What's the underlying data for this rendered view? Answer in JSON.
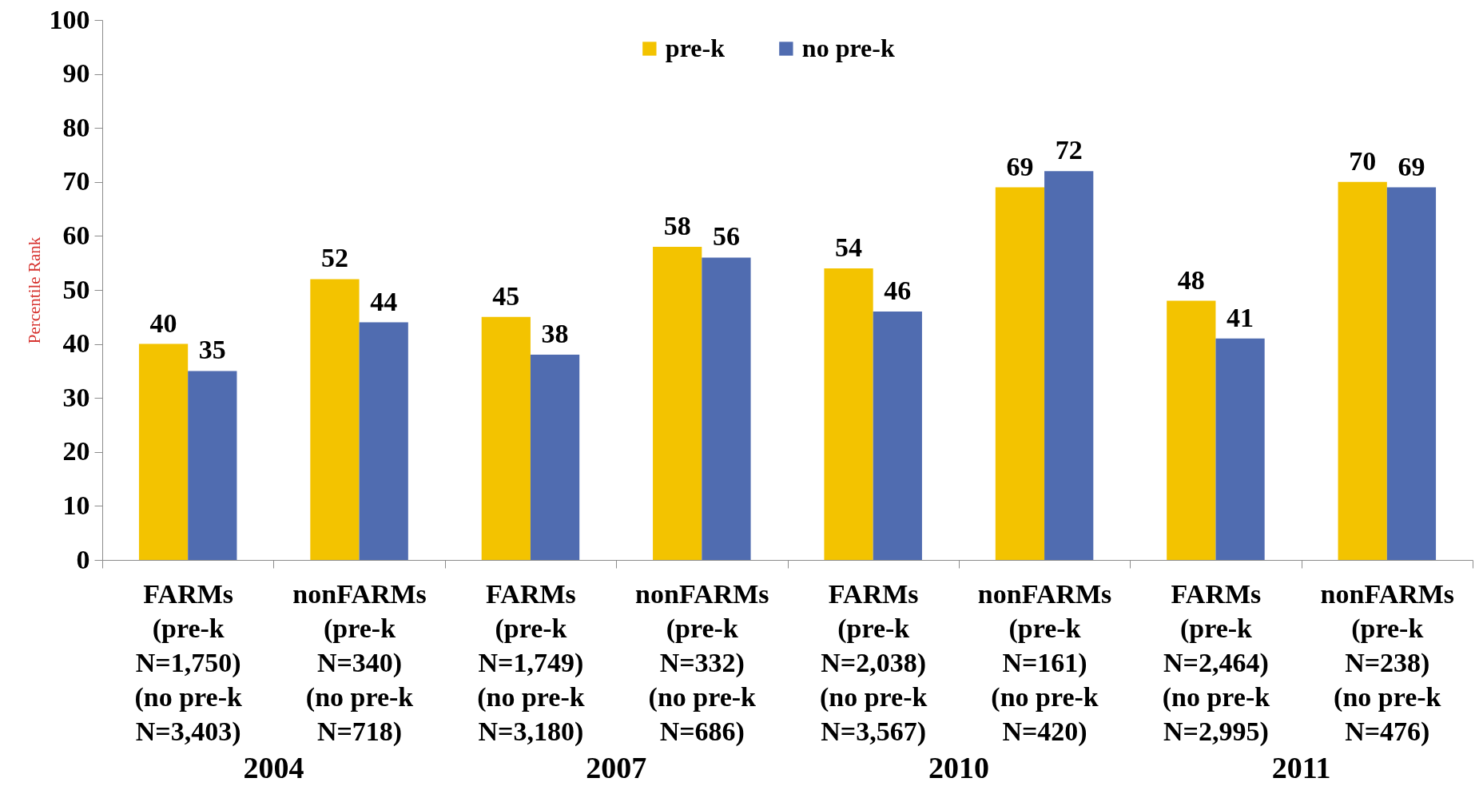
{
  "chart_data": {
    "type": "bar",
    "ylabel": "Percentile Rank",
    "categories": [
      "FARMs\n(pre-k\nN=1,750)\n(no pre-k\nN=3,403)",
      "nonFARMs\n(pre-k\nN=340)\n(no pre-k\nN=718)",
      "FARMs\n(pre-k\nN=1,749)\n(no pre-k\nN=3,180)",
      "nonFARMs\n(pre-k\nN=332)\n(no pre-k\nN=686)",
      "FARMs\n(pre-k\nN=2,038)\n(no pre-k\nN=3,567)",
      "nonFARMs\n(pre-k\nN=161)\n(no pre-k\nN=420)",
      "FARMs\n(pre-k\nN=2,464)\n(no pre-k\nN=2,995)",
      "nonFARMs\n(pre-k\nN=238)\n(no pre-k\nN=476)"
    ],
    "series": [
      {
        "name": "pre-k",
        "color": "#f3c300",
        "values": [
          40,
          52,
          45,
          58,
          54,
          69,
          48,
          70
        ]
      },
      {
        "name": "no pre-k",
        "color": "#506cb0",
        "values": [
          35,
          44,
          38,
          56,
          46,
          72,
          41,
          69
        ]
      }
    ],
    "ylim": [
      0,
      100
    ],
    "yticks": [
      0,
      10,
      20,
      30,
      40,
      50,
      60,
      70,
      80,
      90,
      100
    ],
    "data_labels": true,
    "legend": "top",
    "grid": false,
    "annotations": [
      "2004",
      "2007",
      "2010",
      "2011"
    ]
  }
}
